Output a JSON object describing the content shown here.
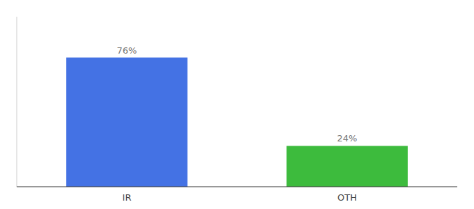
{
  "chart_data": {
    "type": "bar",
    "categories": [
      "IR",
      "OTH"
    ],
    "values": [
      76,
      24
    ],
    "value_labels": [
      "76%",
      "24%"
    ],
    "colors": [
      "#4472e4",
      "#3dbb3d"
    ],
    "ylim": [
      0,
      100
    ],
    "data_labels": true,
    "tick_labels": "x",
    "grid": false
  }
}
